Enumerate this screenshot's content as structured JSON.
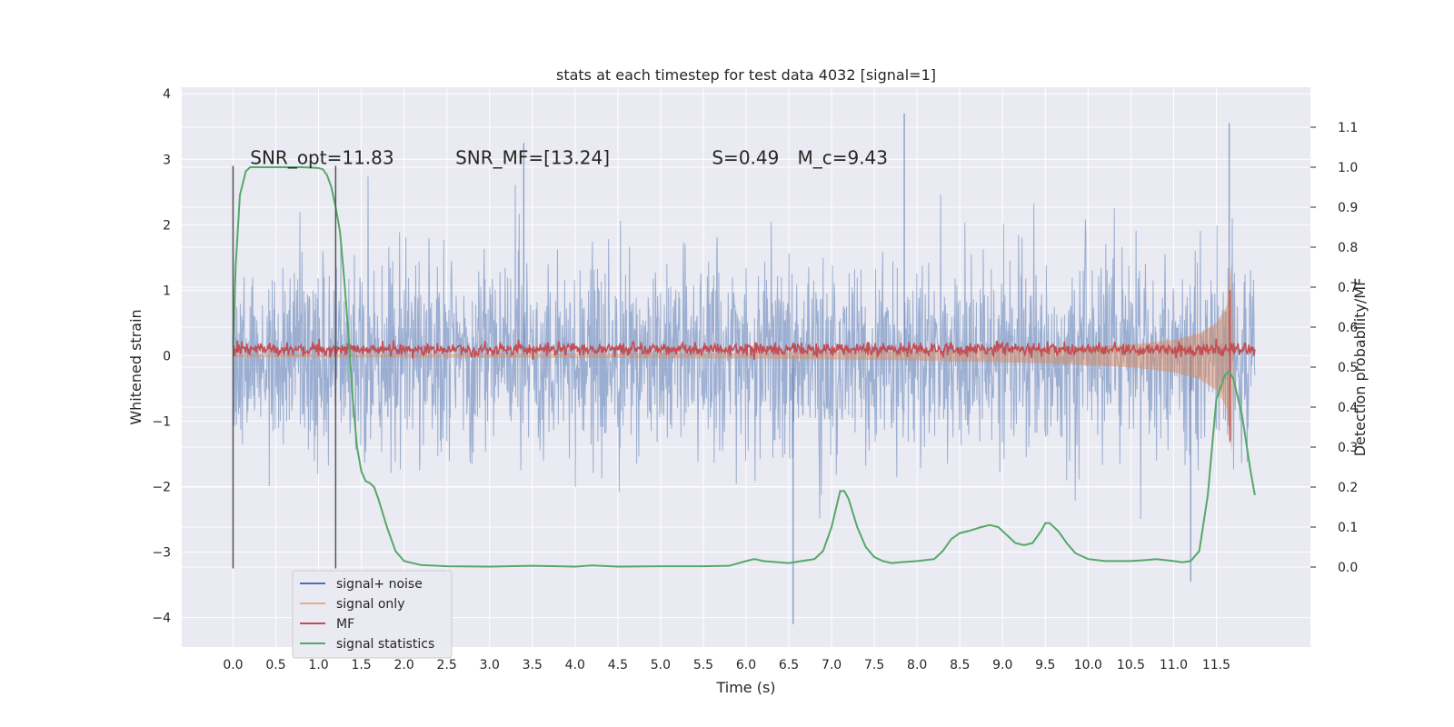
{
  "chart_data": {
    "type": "line",
    "title": "stats at each timestep for test data 4032 [signal=1]",
    "xlabel": "Time (s)",
    "ylabel": "Whitened strain",
    "ylabel_right": "Detection probability/MF",
    "xlim": [
      -0.6,
      12.6
    ],
    "ylim": [
      -4.45,
      4.1
    ],
    "ylim_right": [
      -0.2,
      1.2
    ],
    "x_ticks": [
      0.0,
      0.5,
      1.0,
      1.5,
      2.0,
      2.5,
      3.0,
      3.5,
      4.0,
      4.5,
      5.0,
      5.5,
      6.0,
      6.5,
      7.0,
      7.5,
      8.0,
      8.5,
      9.0,
      9.5,
      10.0,
      10.5,
      11.0,
      11.5
    ],
    "x_tick_labels": [
      "0.0",
      "0.5",
      "1.0",
      "1.5",
      "2.0",
      "2.5",
      "3.0",
      "3.5",
      "4.0",
      "4.5",
      "5.0",
      "5.5",
      "6.0",
      "6.5",
      "7.0",
      "7.5",
      "8.0",
      "8.5",
      "9.0",
      "9.5",
      "10.0",
      "10.5",
      "11.0",
      "11.5"
    ],
    "y_ticks": [
      -4,
      -3,
      -2,
      -1,
      0,
      1,
      2,
      3,
      4
    ],
    "y_tick_labels": [
      "−4",
      "−3",
      "−2",
      "−1",
      "0",
      "1",
      "2",
      "3",
      "4"
    ],
    "y_right_ticks": [
      0.0,
      0.1,
      0.2,
      0.3,
      0.4,
      0.5,
      0.6,
      0.7,
      0.8,
      0.9,
      1.0,
      1.1
    ],
    "y_right_tick_labels": [
      "0.0",
      "0.1",
      "0.2",
      "0.3",
      "0.4",
      "0.5",
      "0.6",
      "0.7",
      "0.8",
      "0.9",
      "1.0",
      "1.1"
    ],
    "grid": true,
    "legend_position": "bottom-left",
    "annotations": [
      {
        "id": "snr-opt",
        "text": "SNR_opt=11.83",
        "x": 0.2,
        "y": 2.93
      },
      {
        "id": "snr-mf",
        "text": "SNR_MF=[13.24]",
        "x": 2.6,
        "y": 2.93
      },
      {
        "id": "s-value",
        "text": "S=0.49",
        "x": 5.6,
        "y": 2.93
      },
      {
        "id": "mc-value",
        "text": "M_c=9.43",
        "x": 6.6,
        "y": 2.93
      }
    ],
    "vertical_lines": [
      {
        "x": 0.0,
        "y_range": [
          -3.25,
          2.9
        ]
      },
      {
        "x": 1.2,
        "y_range": [
          -3.25,
          2.9
        ]
      }
    ],
    "series": [
      {
        "name": "signal+ noise",
        "color": "#4c72b0",
        "axis": "left",
        "description_range": [
          0.0,
          11.95
        ],
        "amplitude_sigma": 0.75,
        "peaks": [
          {
            "x": 7.85,
            "y": 3.7
          },
          {
            "x": 11.65,
            "y": 3.55
          },
          {
            "x": 3.4,
            "y": 3.25
          },
          {
            "x": 6.55,
            "y": -4.1
          },
          {
            "x": 11.2,
            "y": -3.45
          }
        ]
      },
      {
        "name": "signal only",
        "color": "#dd8452",
        "axis": "left",
        "description_range": [
          0.0,
          11.7
        ],
        "envelope": [
          {
            "x": 0.0,
            "y": 0.02
          },
          {
            "x": 6.0,
            "y": 0.04
          },
          {
            "x": 8.0,
            "y": 0.07
          },
          {
            "x": 9.5,
            "y": 0.11
          },
          {
            "x": 10.5,
            "y": 0.17
          },
          {
            "x": 11.0,
            "y": 0.24
          },
          {
            "x": 11.3,
            "y": 0.34
          },
          {
            "x": 11.5,
            "y": 0.5
          },
          {
            "x": 11.62,
            "y": 0.75
          },
          {
            "x": 11.68,
            "y": 1.45
          },
          {
            "x": 11.7,
            "y": 0.0
          }
        ]
      },
      {
        "name": "MF",
        "color": "#c44e52",
        "axis": "left",
        "description_range": [
          0.0,
          11.95
        ],
        "baseline": 0.1,
        "spike": {
          "x": 11.66,
          "y_max": 1.0,
          "y_min": -1.3
        }
      },
      {
        "name": "signal statistics",
        "color": "#55a868",
        "axis": "right",
        "x": [
          0.0,
          0.03,
          0.08,
          0.15,
          0.2,
          0.3,
          0.5,
          0.8,
          1.0,
          1.05,
          1.1,
          1.15,
          1.2,
          1.25,
          1.3,
          1.35,
          1.4,
          1.45,
          1.5,
          1.55,
          1.6,
          1.65,
          1.7,
          1.8,
          1.9,
          2.0,
          2.2,
          2.5,
          3.0,
          3.5,
          4.0,
          4.2,
          4.5,
          5.0,
          5.5,
          5.8,
          6.0,
          6.1,
          6.2,
          6.5,
          6.8,
          6.9,
          7.0,
          7.1,
          7.15,
          7.2,
          7.3,
          7.4,
          7.5,
          7.6,
          7.7,
          7.8,
          8.0,
          8.2,
          8.3,
          8.4,
          8.5,
          8.6,
          8.75,
          8.85,
          8.95,
          9.05,
          9.15,
          9.25,
          9.35,
          9.45,
          9.5,
          9.55,
          9.65,
          9.75,
          9.85,
          10.0,
          10.2,
          10.5,
          10.7,
          10.8,
          11.0,
          11.1,
          11.2,
          11.3,
          11.4,
          11.5,
          11.6,
          11.65,
          11.7,
          11.8,
          11.9,
          11.95
        ],
        "values": [
          0.55,
          0.75,
          0.93,
          0.99,
          1.0,
          1.0,
          1.0,
          1.0,
          0.998,
          0.995,
          0.98,
          0.95,
          0.9,
          0.84,
          0.72,
          0.58,
          0.42,
          0.3,
          0.24,
          0.215,
          0.21,
          0.2,
          0.17,
          0.1,
          0.04,
          0.015,
          0.005,
          0.002,
          0.001,
          0.003,
          0.001,
          0.004,
          0.001,
          0.002,
          0.002,
          0.003,
          0.015,
          0.02,
          0.015,
          0.01,
          0.02,
          0.04,
          0.1,
          0.19,
          0.19,
          0.17,
          0.1,
          0.05,
          0.025,
          0.015,
          0.01,
          0.012,
          0.015,
          0.02,
          0.04,
          0.07,
          0.085,
          0.09,
          0.1,
          0.105,
          0.1,
          0.08,
          0.06,
          0.055,
          0.06,
          0.09,
          0.11,
          0.11,
          0.09,
          0.06,
          0.035,
          0.02,
          0.015,
          0.015,
          0.018,
          0.02,
          0.015,
          0.012,
          0.015,
          0.04,
          0.18,
          0.42,
          0.48,
          0.49,
          0.47,
          0.38,
          0.24,
          0.18
        ]
      }
    ]
  }
}
